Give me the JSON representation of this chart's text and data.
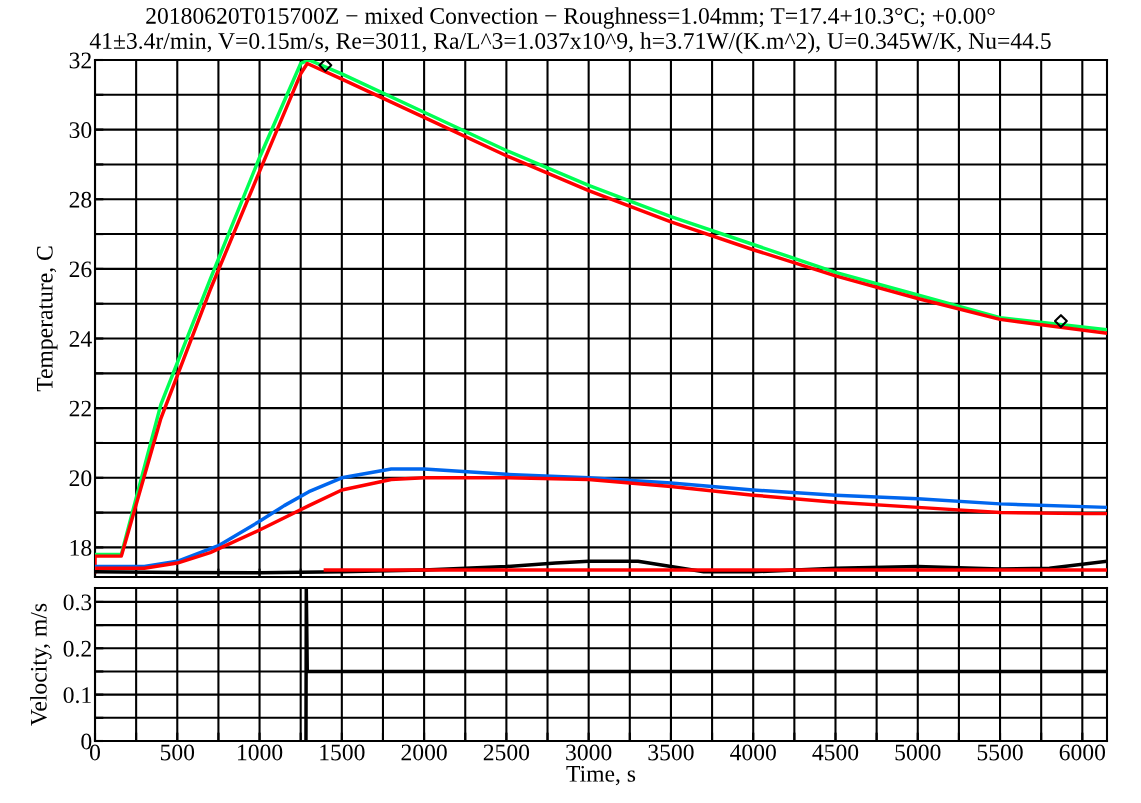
{
  "chart_data": [
    {
      "type": "line",
      "title": "20180620T015700Z − mixed Convection − Roughness=1.04mm; T=17.4+10.3°C; +0.00°",
      "subtitle": "41±3.4r/min, V=0.15m/s, Re=3011, Ra/L^3=1.037x10^9, h=3.71W/(K.m^2), U=0.345W/K, Nu=44.5",
      "ylabel": "Temperature, C",
      "xlim": [
        0,
        6150
      ],
      "ylim": [
        17.15,
        32
      ],
      "xticks": [
        {
          "value": 0,
          "label": null
        },
        {
          "value": 250,
          "label": null
        },
        {
          "value": 500,
          "label": null
        },
        {
          "value": 750,
          "label": null
        },
        {
          "value": 1000,
          "label": null
        },
        {
          "value": 1250,
          "label": null
        },
        {
          "value": 1500,
          "label": null
        },
        {
          "value": 1750,
          "label": null
        },
        {
          "value": 2000,
          "label": null
        },
        {
          "value": 2250,
          "label": null
        },
        {
          "value": 2500,
          "label": null
        },
        {
          "value": 2750,
          "label": null
        },
        {
          "value": 3000,
          "label": null
        },
        {
          "value": 3250,
          "label": null
        },
        {
          "value": 3500,
          "label": null
        },
        {
          "value": 3750,
          "label": null
        },
        {
          "value": 4000,
          "label": null
        },
        {
          "value": 4250,
          "label": null
        },
        {
          "value": 4500,
          "label": null
        },
        {
          "value": 4750,
          "label": null
        },
        {
          "value": 5000,
          "label": null
        },
        {
          "value": 5250,
          "label": null
        },
        {
          "value": 5500,
          "label": null
        },
        {
          "value": 5750,
          "label": null
        },
        {
          "value": 6000,
          "label": null
        }
      ],
      "yticks": [
        18,
        {
          "value": 19,
          "label": null
        },
        20,
        {
          "value": 21,
          "label": null
        },
        22,
        {
          "value": 23,
          "label": null
        },
        24,
        {
          "value": 25,
          "label": null
        },
        26,
        {
          "value": 27,
          "label": null
        },
        28,
        {
          "value": 29,
          "label": null
        },
        30,
        {
          "value": 31,
          "label": null
        },
        32
      ],
      "tick_labels": "y",
      "grid": true,
      "line_style": "solid",
      "marker": "none",
      "series": [
        {
          "color": "#00ff55",
          "x": [
            0,
            160,
            400,
            700,
            1000,
            1250,
            1300,
            1500,
            2000,
            2500,
            3000,
            3500,
            4000,
            4500,
            5000,
            5500,
            6150
          ],
          "values": [
            17.8,
            17.8,
            22.1,
            25.7,
            29.2,
            31.9,
            32.0,
            31.6,
            30.5,
            29.4,
            28.4,
            27.5,
            26.7,
            25.9,
            25.25,
            24.6,
            24.25
          ]
        },
        {
          "color": "#ff0000",
          "x": [
            0,
            0,
            160,
            400,
            700,
            1000,
            1250,
            1290,
            1500,
            2000,
            2500,
            3000,
            3500,
            4000,
            4500,
            5000,
            5500,
            6150
          ],
          "values": [
            17.3,
            17.75,
            17.75,
            21.7,
            25.4,
            28.8,
            31.6,
            31.9,
            31.45,
            30.35,
            29.25,
            28.25,
            27.35,
            26.55,
            25.8,
            25.15,
            24.55,
            24.15
          ]
        },
        {
          "color": "#0066ee",
          "x": [
            0,
            300,
            500,
            750,
            1000,
            1150,
            1300,
            1500,
            1800,
            2000,
            2500,
            3000,
            3500,
            4000,
            4500,
            5000,
            5500,
            6150
          ],
          "values": [
            17.45,
            17.45,
            17.6,
            18.05,
            18.75,
            19.2,
            19.6,
            20.0,
            20.25,
            20.25,
            20.1,
            20.0,
            19.85,
            19.65,
            19.5,
            19.4,
            19.25,
            19.15
          ]
        },
        {
          "color": "#ff0000",
          "x": [
            0,
            300,
            500,
            700,
            1000,
            1300,
            1500,
            1800,
            2000,
            2500,
            3000,
            3500,
            4000,
            4500,
            5000,
            5500,
            6000,
            6150
          ],
          "values": [
            17.4,
            17.4,
            17.55,
            17.85,
            18.5,
            19.2,
            19.65,
            19.95,
            20.0,
            20.0,
            19.95,
            19.75,
            19.5,
            19.3,
            19.15,
            19.0,
            18.97,
            18.97
          ]
        },
        {
          "color": "#000000",
          "x": [
            0,
            500,
            1000,
            1500,
            2000,
            2500,
            2800,
            3000,
            3300,
            3500,
            3700,
            4000,
            4500,
            5000,
            5500,
            5800,
            6150
          ],
          "values": [
            17.3,
            17.28,
            17.27,
            17.3,
            17.35,
            17.45,
            17.55,
            17.6,
            17.6,
            17.45,
            17.3,
            17.3,
            17.4,
            17.45,
            17.38,
            17.4,
            17.6
          ]
        },
        {
          "color": "#ff0000",
          "x": [
            1400,
            6150
          ],
          "values": [
            17.35,
            17.35
          ]
        },
        {
          "type": "scatter",
          "marker": "diamond",
          "color": "#000000",
          "x": [
            1400,
            5870
          ],
          "values": [
            31.85,
            24.5
          ]
        }
      ]
    },
    {
      "type": "line",
      "xlabel": "Time, s",
      "ylabel": "Velocity, m/s",
      "xlim": [
        0,
        6150
      ],
      "ylim": [
        0,
        0.33
      ],
      "xticks": [
        0,
        {
          "value": 250,
          "label": null
        },
        500,
        {
          "value": 750,
          "label": null
        },
        1000,
        {
          "value": 1250,
          "label": null
        },
        1500,
        {
          "value": 1750,
          "label": null
        },
        2000,
        {
          "value": 2250,
          "label": null
        },
        2500,
        {
          "value": 2750,
          "label": null
        },
        3000,
        {
          "value": 3250,
          "label": null
        },
        3500,
        {
          "value": 3750,
          "label": null
        },
        4000,
        {
          "value": 4250,
          "label": null
        },
        4500,
        {
          "value": 4750,
          "label": null
        },
        5000,
        {
          "value": 5250,
          "label": null
        },
        5500,
        {
          "value": 5750,
          "label": null
        },
        6000
      ],
      "yticks": [
        0,
        {
          "value": 0.05,
          "label": null
        },
        0.1,
        {
          "value": 0.15,
          "label": null
        },
        0.2,
        {
          "value": 0.25,
          "label": null
        },
        0.3
      ],
      "grid": true,
      "line_style": "solid",
      "marker": "none",
      "series": [
        {
          "color": "#000000",
          "x": [
            1282,
            1284,
            1290,
            1600,
            2000,
            2500,
            3000,
            3500,
            4000,
            4500,
            5000,
            5500,
            6150
          ],
          "values": [
            0,
            0.33,
            0.15,
            0.15,
            0.15,
            0.15,
            0.15,
            0.15,
            0.15,
            0.15,
            0.15,
            0.15,
            0.15
          ]
        }
      ]
    }
  ]
}
